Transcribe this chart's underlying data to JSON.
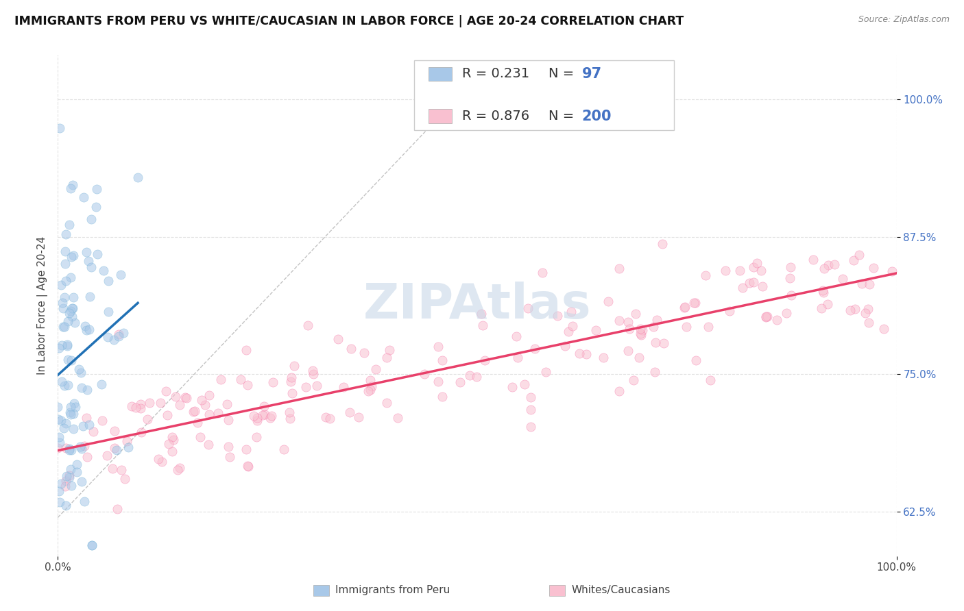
{
  "title": "IMMIGRANTS FROM PERU VS WHITE/CAUCASIAN IN LABOR FORCE | AGE 20-24 CORRELATION CHART",
  "source": "Source: ZipAtlas.com",
  "ylabel": "In Labor Force | Age 20-24",
  "xlim": [
    0.0,
    1.0
  ],
  "ylim": [
    0.585,
    1.04
  ],
  "yticks": [
    0.625,
    0.75,
    0.875,
    1.0
  ],
  "ytick_labels": [
    "62.5%",
    "75.0%",
    "87.5%",
    "100.0%"
  ],
  "xticks": [
    0.0,
    1.0
  ],
  "xtick_labels": [
    "0.0%",
    "100.0%"
  ],
  "legend_R1": "0.231",
  "legend_N1": "97",
  "legend_R2": "0.876",
  "legend_N2": "200",
  "color_peru": "#a8c8e8",
  "color_peru_edge": "#6baed6",
  "color_white": "#f9c0d0",
  "color_white_edge": "#f768a1",
  "color_peru_line": "#2171b5",
  "color_white_line": "#e8406a",
  "scatter_alpha": 0.55,
  "background_color": "#ffffff",
  "watermark": "ZIPAtlas",
  "watermark_color": "#c8d8e8",
  "title_fontsize": 12.5,
  "axis_label_fontsize": 11,
  "tick_fontsize": 11,
  "legend_fontsize": 14,
  "grid_color": "#dddddd",
  "ytick_color": "#4472c4",
  "n_peru": 97,
  "n_white": 200
}
